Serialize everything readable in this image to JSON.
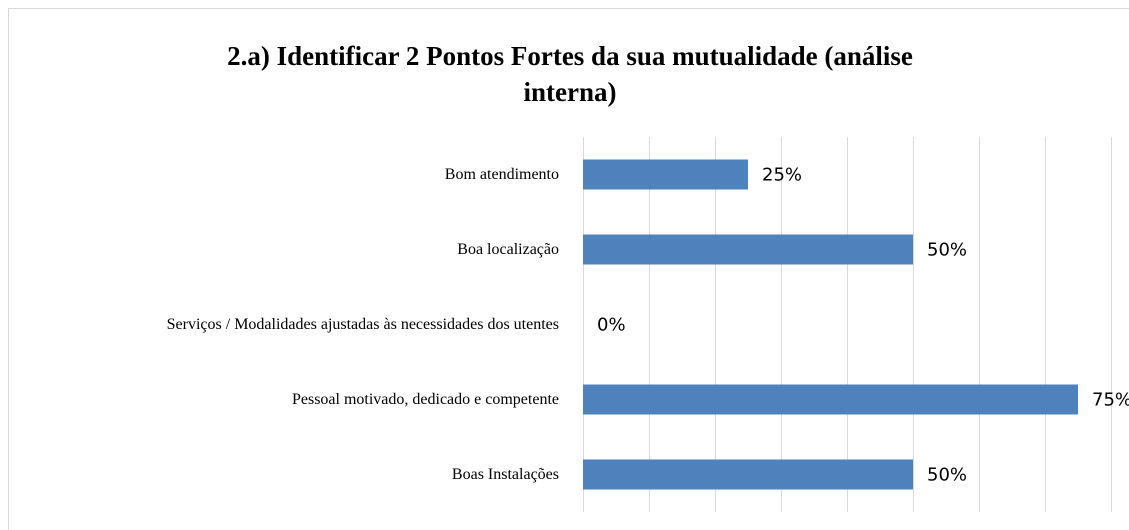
{
  "chart_data": {
    "type": "barh",
    "title": "2.a) Identificar 2 Pontos Fortes da sua mutualidade (análise interna)",
    "categories": [
      "Bom atendimento",
      "Boa localização",
      "Serviços / Modalidades ajustadas às necessidades dos utentes",
      "Pessoal motivado, dedicado e competente",
      "Boas Instalações"
    ],
    "values": [
      25,
      50,
      0,
      75,
      50
    ],
    "value_labels": [
      "25%",
      "50%",
      "0%",
      "75%",
      "50%"
    ],
    "color": "#4f81bd",
    "xlim": [
      0,
      80
    ],
    "xticks": [
      0,
      10,
      20,
      30,
      40,
      50,
      60,
      70,
      80
    ],
    "grid": true
  }
}
